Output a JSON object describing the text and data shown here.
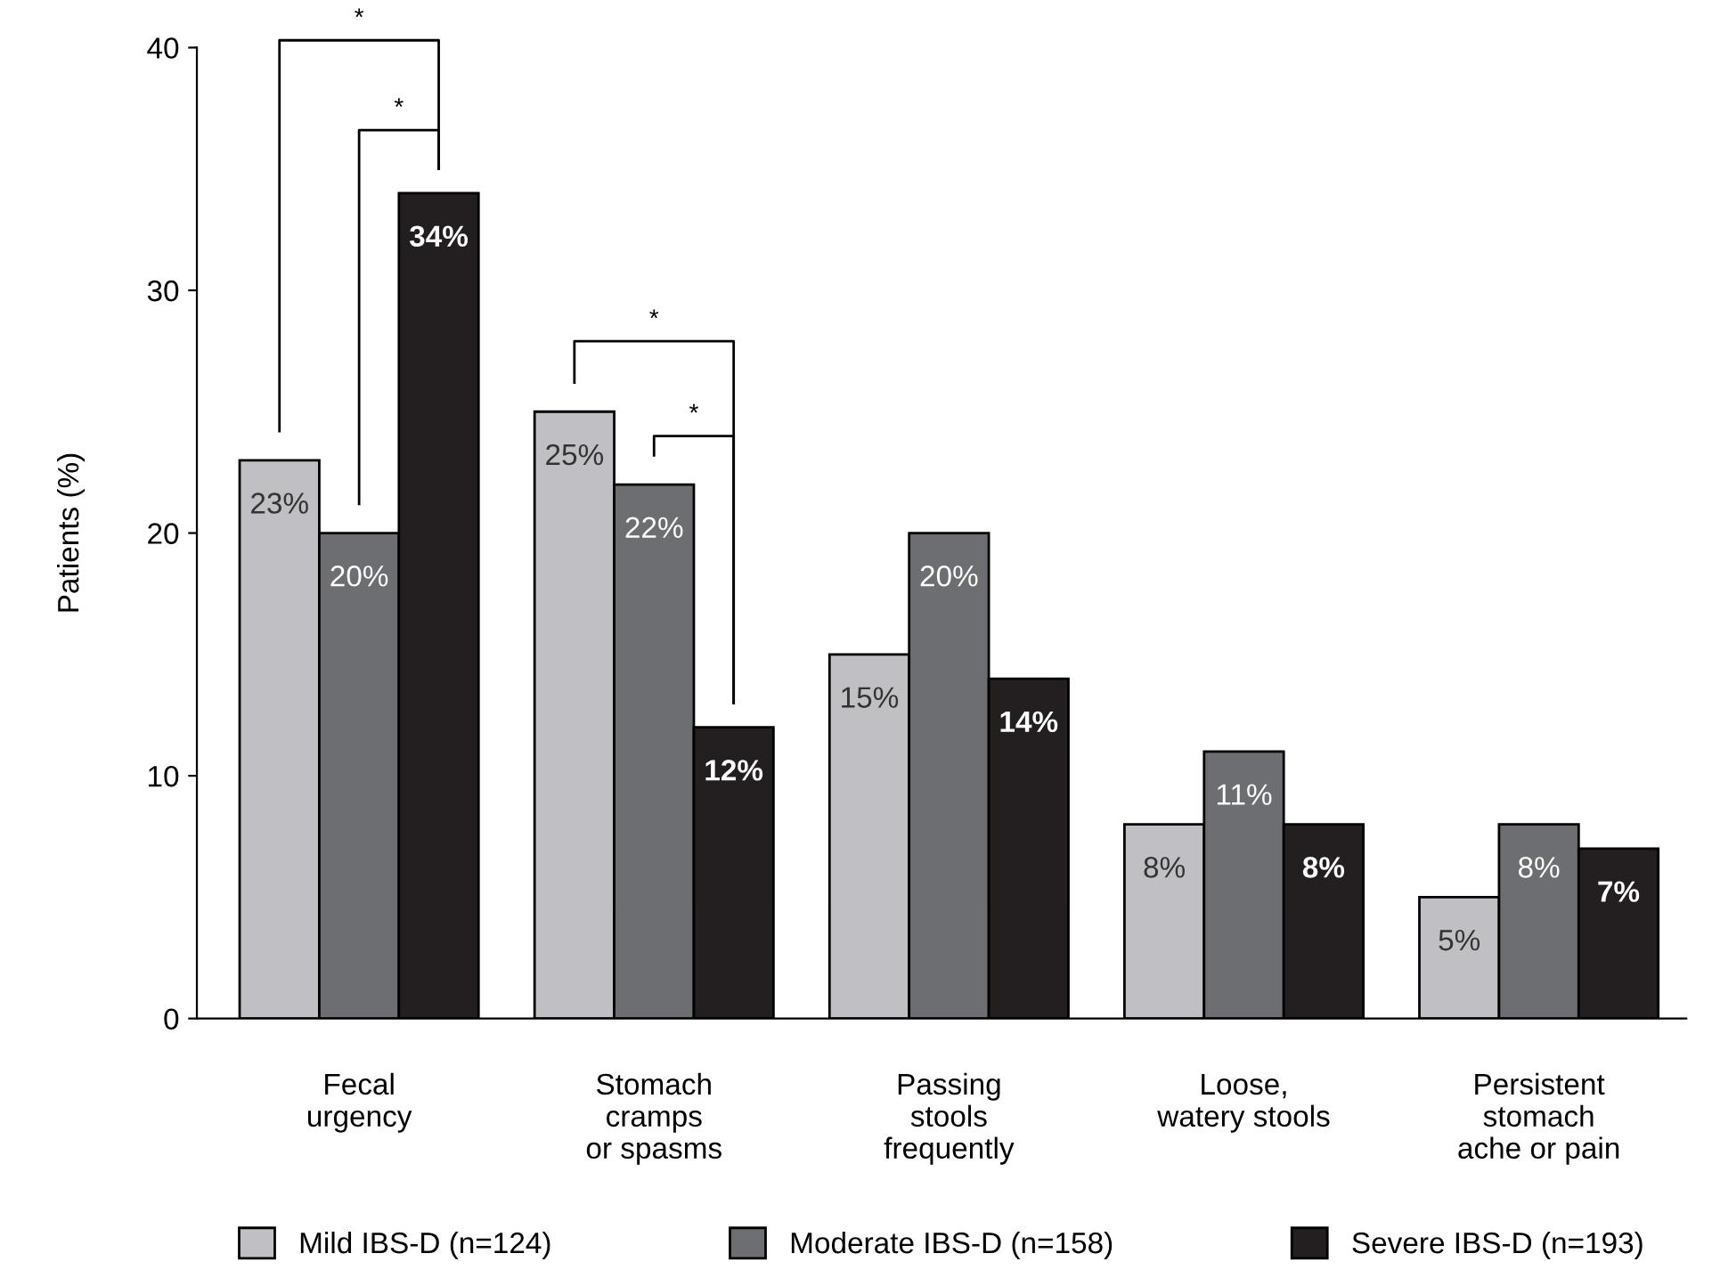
{
  "chart_data": {
    "type": "bar",
    "ylabel": "Patients (%)",
    "categories": [
      "Fecal\nurgency",
      "Stomach\ncramps\nor spasms",
      "Passing\nstools\nfrequently",
      "Loose,\nwatery stools",
      "Persistent\nstomach\nache or pain"
    ],
    "series": [
      {
        "name": "Mild IBS-D (n=124)",
        "color": "#c0c0c4",
        "values": [
          23,
          25,
          15,
          8,
          5
        ],
        "value_labels": [
          "23%",
          "25%",
          "15%",
          "8%",
          "5%"
        ]
      },
      {
        "name": "Moderate IBS-D (n=158)",
        "color": "#6d6e72",
        "values": [
          20,
          22,
          20,
          11,
          8
        ],
        "value_labels": [
          "20%",
          "22%",
          "20%",
          "11%",
          "8%"
        ]
      },
      {
        "name": "Severe IBS-D (n=193)",
        "color": "#231f20",
        "values": [
          34,
          12,
          14,
          8,
          7
        ],
        "value_labels": [
          "34%",
          "12%",
          "14%",
          "8%",
          "7%"
        ]
      }
    ],
    "ylim": [
      0,
      40
    ],
    "yticks": [
      0,
      10,
      20,
      30,
      40
    ],
    "grid": false,
    "legend": "bottom",
    "annotations": [
      "*",
      "*",
      "*",
      "*"
    ]
  }
}
